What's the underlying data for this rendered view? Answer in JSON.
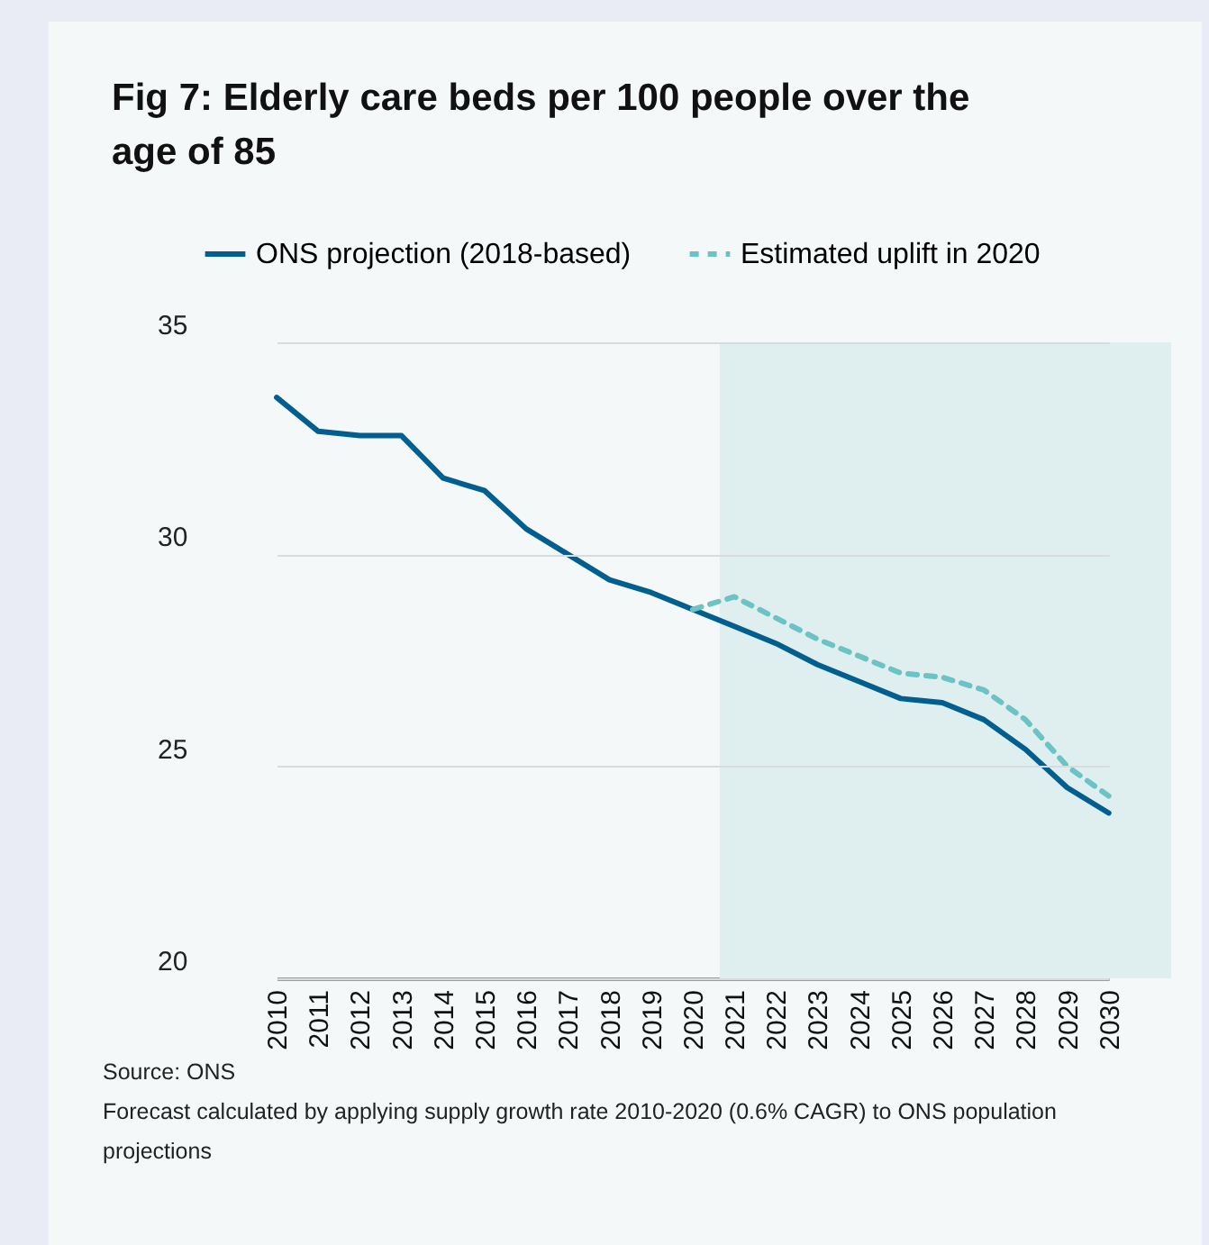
{
  "chart_data": {
    "type": "line",
    "title": "Fig 7:  Elderly care beds per 100 people over the age of 85",
    "categories": [
      "2010",
      "2011",
      "2012",
      "2013",
      "2014",
      "2015",
      "2016",
      "2017",
      "2018",
      "2019",
      "2020",
      "2021",
      "2022",
      "2023",
      "2024",
      "2025",
      "2026",
      "2027",
      "2028",
      "2029",
      "2030"
    ],
    "series": [
      {
        "name": "ONS projection (2018-based)",
        "color": "#005f8f",
        "line_style": "solid",
        "values": [
          33.7,
          32.9,
          32.8,
          32.8,
          31.8,
          31.5,
          30.6,
          30.0,
          29.4,
          29.1,
          28.7,
          28.3,
          27.9,
          27.4,
          27.0,
          26.6,
          26.5,
          26.1,
          25.4,
          24.5,
          23.9
        ]
      },
      {
        "name": "Estimated uplift in 2020",
        "color": "#6cc3c3",
        "line_style": "dashed",
        "values": [
          null,
          null,
          null,
          null,
          null,
          null,
          null,
          null,
          null,
          null,
          28.7,
          29.0,
          28.5,
          28.0,
          27.6,
          27.2,
          27.1,
          26.8,
          26.1,
          25.0,
          24.3
        ]
      }
    ],
    "bands": [
      {
        "axis": "x",
        "from": "2021",
        "to": "2030",
        "color": "#dfeff0"
      }
    ],
    "ylim": [
      20,
      35
    ],
    "yticks": [
      20,
      25,
      30,
      35
    ],
    "grid": "y",
    "legend": "top left",
    "annotations": [
      "Source: ONS",
      "Forecast calculated by applying supply growth rate 2010-2020 (0.6% CAGR) to ONS population projections"
    ]
  }
}
